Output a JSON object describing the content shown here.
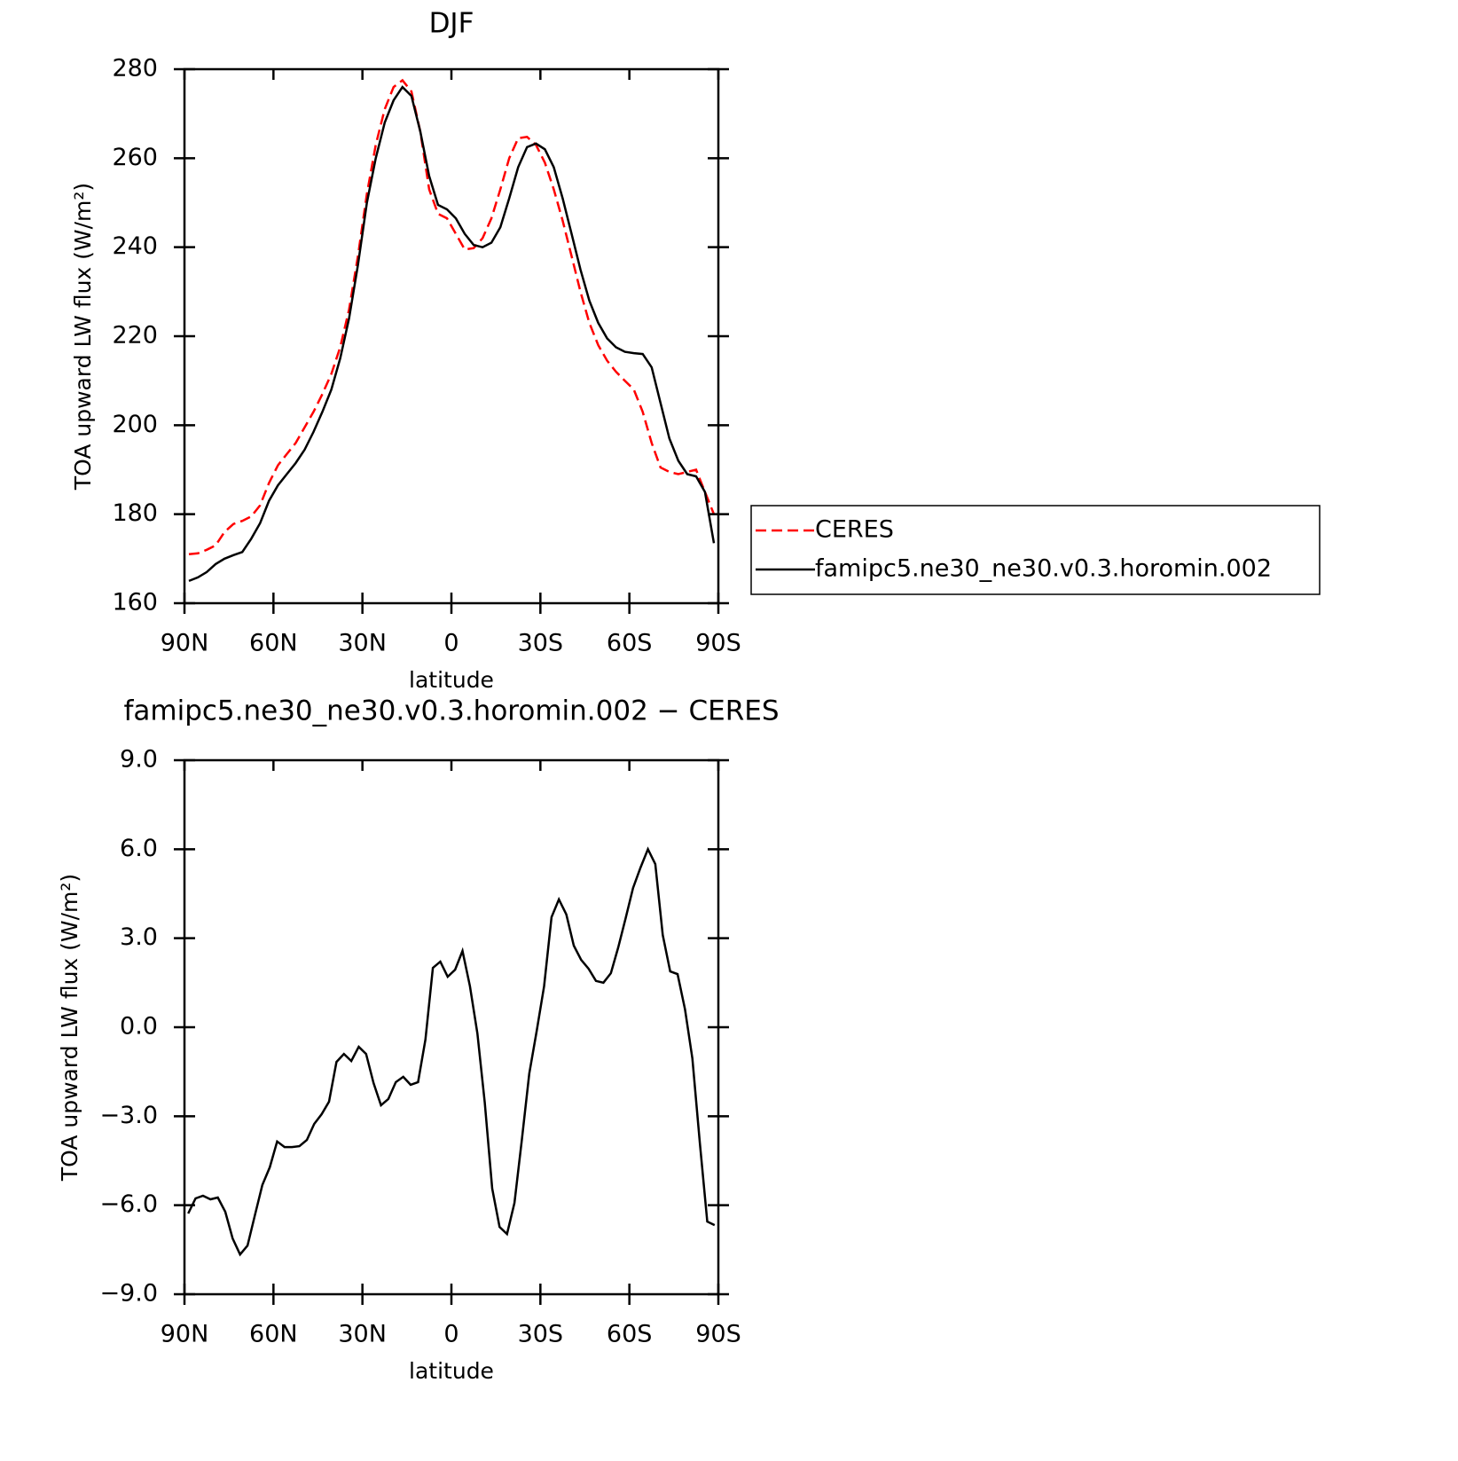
{
  "chart_data": [
    {
      "type": "line",
      "title": "DJF",
      "xlabel": "latitude",
      "ylabel": "TOA upward LW flux (W/m²)",
      "x": [
        88.5,
        85.5,
        82.5,
        79.5,
        76.5,
        73.5,
        70.5,
        67.5,
        64.5,
        61.5,
        58.5,
        55.5,
        52.5,
        49.5,
        46.5,
        43.5,
        40.5,
        37.5,
        34.5,
        31.5,
        28.5,
        25.5,
        22.5,
        19.5,
        16.5,
        13.5,
        10.5,
        7.5,
        4.5,
        1.5,
        -1.5,
        -4.5,
        -7.5,
        -10.5,
        -13.5,
        -16.5,
        -19.5,
        -22.5,
        -25.5,
        -28.5,
        -31.5,
        -34.5,
        -37.5,
        -40.5,
        -43.5,
        -46.5,
        -49.5,
        -52.5,
        -55.5,
        -58.5,
        -61.5,
        -64.5,
        -67.5,
        -70.5,
        -73.5,
        -76.5,
        -79.5,
        -82.5,
        -85.5,
        -88.5
      ],
      "series": [
        {
          "name": "CERES",
          "color": "#ff0000",
          "linestyle": "dashed",
          "values": [
            171,
            171.2,
            172,
            173,
            176,
            177.8,
            178.5,
            179.5,
            182,
            187,
            191,
            193.5,
            196,
            199.5,
            203,
            207,
            211.5,
            217.5,
            226,
            238,
            252,
            263,
            271,
            276,
            277.5,
            275,
            266,
            253,
            247.5,
            246.5,
            243,
            239.5,
            239.8,
            242,
            246.5,
            253,
            260,
            264.5,
            264.8,
            263,
            259,
            253,
            246,
            238,
            230,
            223,
            218,
            214.5,
            212,
            210,
            208,
            203,
            196,
            190.5,
            189.5,
            189,
            189.5,
            190,
            185,
            180
          ]
        },
        {
          "name": "famipc5.ne30_ne30.v0.3.horomin.002",
          "color": "#000000",
          "linestyle": "solid",
          "values": [
            165,
            165.8,
            167,
            168.8,
            170,
            170.8,
            171.5,
            174.5,
            178,
            183,
            186.5,
            189,
            191.5,
            194.5,
            198.5,
            203,
            208,
            215,
            224,
            236,
            250,
            260,
            268,
            273,
            276,
            274,
            266,
            256,
            249.5,
            248.5,
            246.5,
            243,
            240.5,
            240,
            241,
            244.5,
            251,
            258,
            262.5,
            263.3,
            262,
            258,
            251,
            243,
            235,
            228,
            223,
            219.5,
            217.5,
            216.5,
            216.2,
            216,
            213,
            205,
            197,
            192,
            189,
            188.5,
            185,
            173.5
          ]
        }
      ],
      "xlim": [
        90,
        -90
      ],
      "xticks": [
        {
          "value": 90,
          "label": "90N"
        },
        {
          "value": 60,
          "label": "60N"
        },
        {
          "value": 30,
          "label": "30N"
        },
        0,
        {
          "value": -30,
          "label": "30S"
        },
        {
          "value": -60,
          "label": "60S"
        },
        {
          "value": -90,
          "label": "90S"
        }
      ],
      "ylim": [
        160,
        280
      ],
      "yticks": [
        160,
        180,
        200,
        220,
        240,
        260,
        280
      ],
      "legend": "right"
    },
    {
      "type": "line",
      "title": "famipc5.ne30_ne30.v0.3.horomin.002 − CERES",
      "xlabel": "latitude",
      "ylabel": "TOA upward LW flux (W/m²)",
      "x": [
        88.75,
        86.25,
        83.75,
        81.25,
        78.75,
        76.25,
        73.75,
        71.25,
        68.75,
        66.25,
        63.75,
        61.25,
        58.75,
        56.25,
        53.75,
        51.25,
        48.75,
        46.25,
        43.75,
        41.25,
        38.75,
        36.25,
        33.75,
        31.25,
        28.75,
        26.25,
        23.75,
        21.25,
        18.75,
        16.25,
        13.75,
        11.25,
        8.75,
        6.25,
        3.75,
        1.25,
        -1.25,
        -3.75,
        -6.25,
        -8.75,
        -11.25,
        -13.75,
        -16.25,
        -18.75,
        -21.25,
        -23.75,
        -26.25,
        -28.75,
        -31.25,
        -33.75,
        -36.25,
        -38.75,
        -41.25,
        -43.75,
        -46.25,
        -48.75,
        -51.25,
        -53.75,
        -56.25,
        -58.75,
        -61.25,
        -63.75,
        -66.25,
        -68.75,
        -71.25,
        -73.75,
        -76.25,
        -78.75,
        -81.25,
        -83.75,
        -86.25,
        -88.75
      ],
      "series": [
        {
          "name": "famipc5.ne30_ne30.v0.3.horomin.002 − CERES",
          "color": "#000000",
          "linestyle": "solid",
          "values": [
            -6.28,
            -5.77,
            -5.68,
            -5.8,
            -5.74,
            -6.22,
            -7.12,
            -7.66,
            -7.36,
            -6.34,
            -5.32,
            -4.72,
            -3.85,
            -4.04,
            -4.04,
            -4.01,
            -3.8,
            -3.26,
            -2.93,
            -2.51,
            -1.17,
            -0.9,
            -1.14,
            -0.66,
            -0.9,
            -1.88,
            -2.63,
            -2.42,
            -1.85,
            -1.67,
            -1.94,
            -1.85,
            -0.42,
            2.0,
            2.21,
            1.7,
            1.94,
            2.57,
            1.38,
            -0.21,
            -2.54,
            -5.44,
            -6.73,
            -6.97,
            -5.92,
            -3.8,
            -1.56,
            -0.12,
            1.38,
            3.71,
            4.31,
            3.8,
            2.75,
            2.27,
            1.97,
            1.56,
            1.5,
            1.82,
            2.69,
            3.68,
            4.69,
            5.38,
            6.0,
            5.5,
            3.11,
            1.88,
            1.79,
            0.6,
            -1.05,
            -3.89,
            -6.55,
            -6.67
          ]
        }
      ],
      "xlim": [
        90,
        -90
      ],
      "xticks": [
        {
          "value": 90,
          "label": "90N"
        },
        {
          "value": 60,
          "label": "60N"
        },
        {
          "value": 30,
          "label": "30N"
        },
        0,
        {
          "value": -30,
          "label": "30S"
        },
        {
          "value": -60,
          "label": "60S"
        },
        {
          "value": -90,
          "label": "90S"
        }
      ],
      "ylim": [
        -9,
        9
      ],
      "yticks": [
        {
          "value": -9,
          "label": "−9.0"
        },
        {
          "value": -6,
          "label": "−6.0"
        },
        {
          "value": -3,
          "label": "−3.0"
        },
        {
          "value": 0,
          "label": "0.0"
        },
        {
          "value": 3,
          "label": "3.0"
        },
        {
          "value": 6,
          "label": "6.0"
        },
        {
          "value": 9,
          "label": "9.0"
        }
      ]
    }
  ]
}
